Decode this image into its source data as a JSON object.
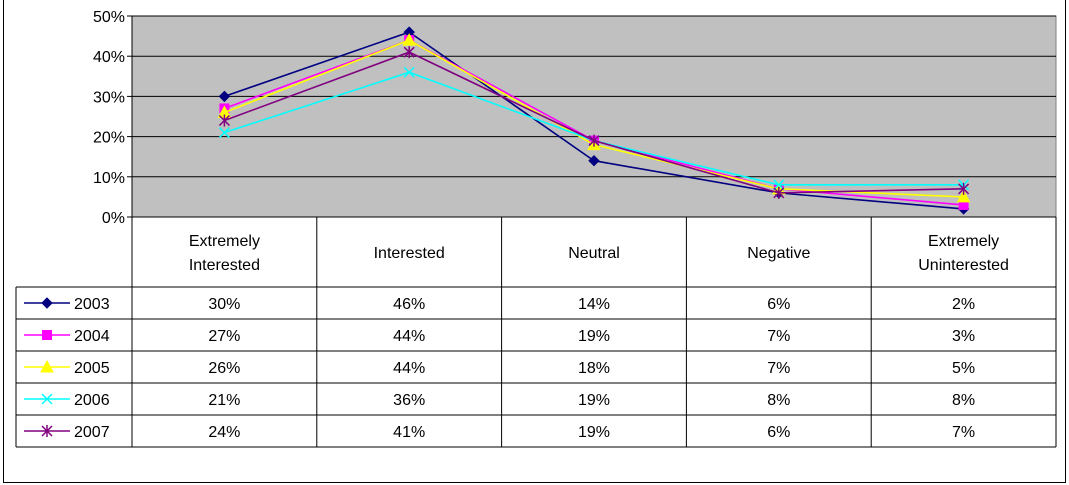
{
  "chart_data": {
    "type": "line",
    "categories": [
      [
        "Extremely",
        "Interested"
      ],
      [
        "Interested"
      ],
      [
        "Neutral"
      ],
      [
        "Negative"
      ],
      [
        "Extremely",
        "Uninterested"
      ]
    ],
    "category_labels": [
      "Extremely Interested",
      "Interested",
      "Neutral",
      "Negative",
      "Extremely Uninterested"
    ],
    "ylim": [
      0,
      50
    ],
    "yticks": [
      "0%",
      "10%",
      "20%",
      "30%",
      "40%",
      "50%"
    ],
    "plot_background": "#c0c0c0",
    "grid": true,
    "legend": "data-table",
    "series": [
      {
        "name": "2003",
        "values": [
          30,
          46,
          14,
          6,
          2
        ],
        "labels": [
          "30%",
          "46%",
          "14%",
          "6%",
          "2%"
        ],
        "color": "#000080",
        "marker": "diamond"
      },
      {
        "name": "2004",
        "values": [
          27,
          44,
          19,
          7,
          3
        ],
        "labels": [
          "27%",
          "44%",
          "19%",
          "7%",
          "3%"
        ],
        "color": "#ff00ff",
        "marker": "square"
      },
      {
        "name": "2005",
        "values": [
          26,
          44,
          18,
          7,
          5
        ],
        "labels": [
          "26%",
          "44%",
          "18%",
          "7%",
          "5%"
        ],
        "color": "#ffff00",
        "marker": "triangle"
      },
      {
        "name": "2006",
        "values": [
          21,
          36,
          19,
          8,
          8
        ],
        "labels": [
          "21%",
          "36%",
          "19%",
          "8%",
          "8%"
        ],
        "color": "#00ffff",
        "marker": "x"
      },
      {
        "name": "2007",
        "values": [
          24,
          41,
          19,
          6,
          7
        ],
        "labels": [
          "24%",
          "41%",
          "19%",
          "6%",
          "7%"
        ],
        "color": "#800080",
        "marker": "star"
      }
    ]
  }
}
